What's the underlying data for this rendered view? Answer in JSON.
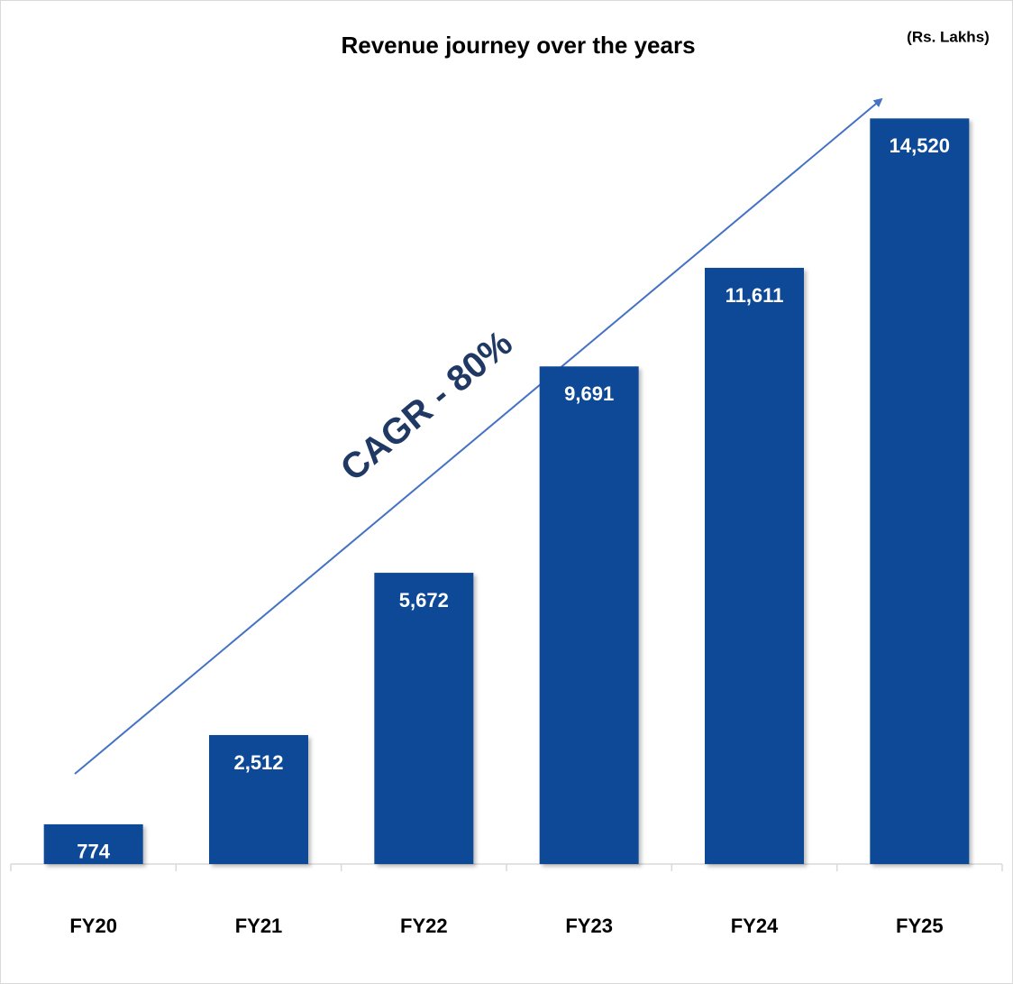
{
  "chart_data": {
    "type": "bar",
    "title": "Revenue journey over the years",
    "unit": "(Rs. Lakhs)",
    "annotation": "CAGR - 80%",
    "categories": [
      "FY20",
      "FY21",
      "FY22",
      "FY23",
      "FY24",
      "FY25"
    ],
    "values": [
      774,
      2512,
      5672,
      9691,
      11611,
      14520
    ],
    "value_labels": [
      "774",
      "2,512",
      "5,672",
      "9,691",
      "11,611",
      "14,520"
    ],
    "color": "#114a96",
    "ylim": [
      0,
      15000
    ]
  }
}
